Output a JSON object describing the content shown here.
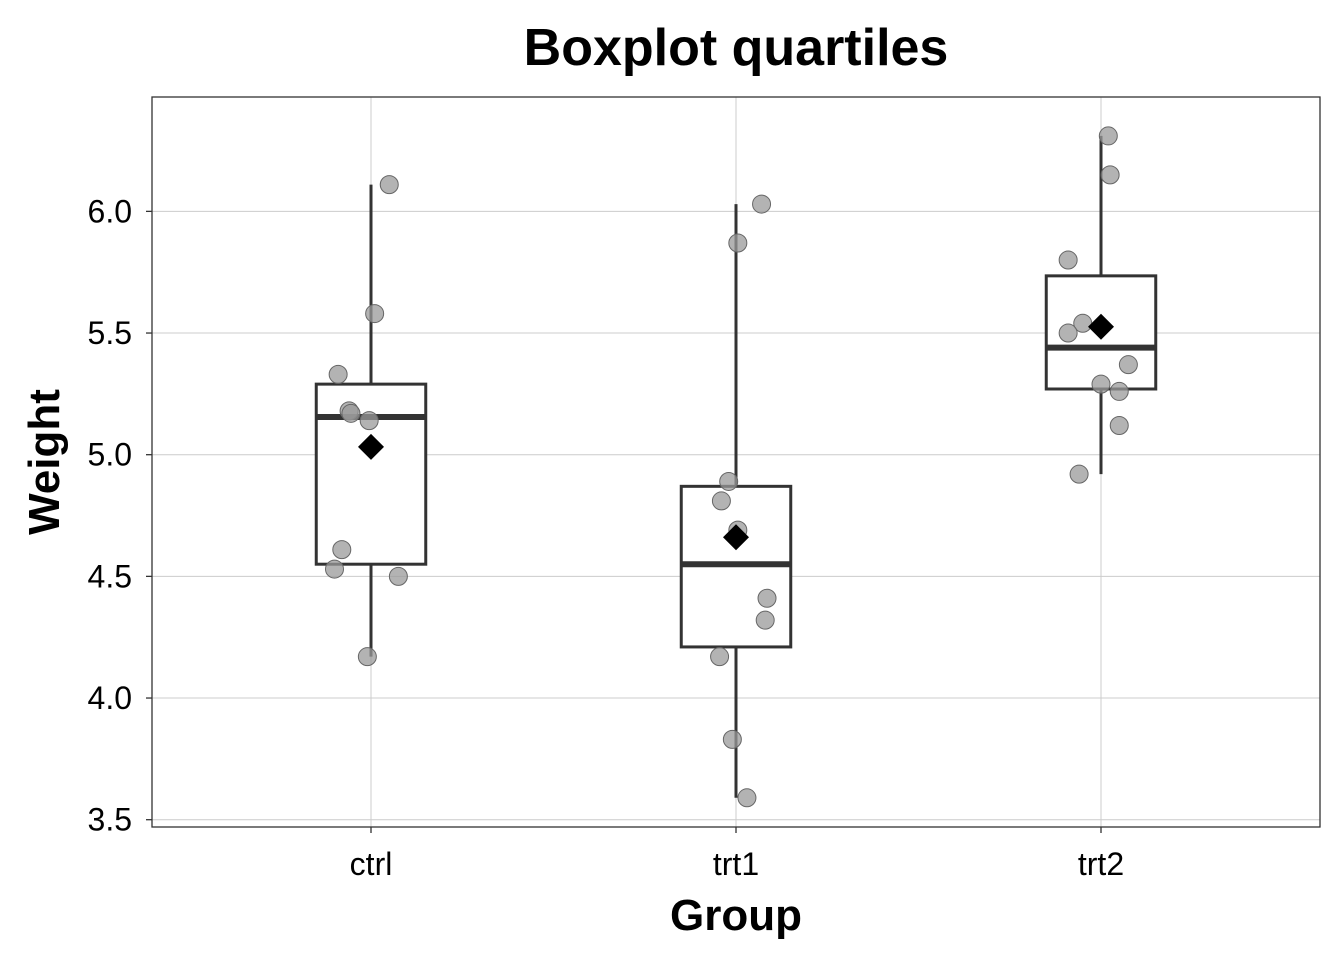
{
  "chart_data": {
    "type": "boxplot",
    "title": "Boxplot quartiles",
    "xlabel": "Group",
    "ylabel": "Weight",
    "ylim": [
      3.47,
      6.47
    ],
    "yticks": [
      3.5,
      4.0,
      4.5,
      5.0,
      5.5,
      6.0
    ],
    "ytick_labels": [
      "3.5",
      "4.0",
      "4.5",
      "5.0",
      "5.5",
      "6.0"
    ],
    "grid": true,
    "groups": [
      {
        "name": "ctrl",
        "whisker_low": 4.17,
        "q1": 4.55,
        "median": 5.155,
        "q3": 5.29,
        "whisker_high": 6.11,
        "mean": 5.032,
        "points": [
          {
            "x_offset": 0.05,
            "value": 6.11
          },
          {
            "x_offset": 0.01,
            "value": 5.58
          },
          {
            "x_offset": -0.09,
            "value": 5.33
          },
          {
            "x_offset": -0.06,
            "value": 5.18
          },
          {
            "x_offset": -0.055,
            "value": 5.17
          },
          {
            "x_offset": -0.005,
            "value": 5.14
          },
          {
            "x_offset": -0.08,
            "value": 4.61
          },
          {
            "x_offset": -0.1,
            "value": 4.53
          },
          {
            "x_offset": 0.075,
            "value": 4.5
          },
          {
            "x_offset": -0.01,
            "value": 4.17
          }
        ]
      },
      {
        "name": "trt1",
        "whisker_low": 3.59,
        "q1": 4.21,
        "median": 4.55,
        "q3": 4.87,
        "whisker_high": 6.03,
        "mean": 4.661,
        "points": [
          {
            "x_offset": 0.07,
            "value": 6.03
          },
          {
            "x_offset": 0.005,
            "value": 5.87
          },
          {
            "x_offset": -0.02,
            "value": 4.89
          },
          {
            "x_offset": -0.04,
            "value": 4.81
          },
          {
            "x_offset": 0.005,
            "value": 4.69
          },
          {
            "x_offset": 0.085,
            "value": 4.41
          },
          {
            "x_offset": 0.08,
            "value": 4.32
          },
          {
            "x_offset": -0.045,
            "value": 4.17
          },
          {
            "x_offset": -0.01,
            "value": 3.83
          },
          {
            "x_offset": 0.03,
            "value": 3.59
          }
        ]
      },
      {
        "name": "trt2",
        "whisker_low": 4.92,
        "q1": 5.27,
        "median": 5.44,
        "q3": 5.735,
        "whisker_high": 6.31,
        "mean": 5.526,
        "points": [
          {
            "x_offset": 0.02,
            "value": 6.31
          },
          {
            "x_offset": 0.025,
            "value": 6.15
          },
          {
            "x_offset": -0.09,
            "value": 5.8
          },
          {
            "x_offset": -0.05,
            "value": 5.54
          },
          {
            "x_offset": -0.09,
            "value": 5.5
          },
          {
            "x_offset": 0.075,
            "value": 5.37
          },
          {
            "x_offset": 0.0,
            "value": 5.29
          },
          {
            "x_offset": 0.05,
            "value": 5.26
          },
          {
            "x_offset": 0.05,
            "value": 5.12
          },
          {
            "x_offset": -0.06,
            "value": 4.92
          }
        ]
      }
    ]
  }
}
